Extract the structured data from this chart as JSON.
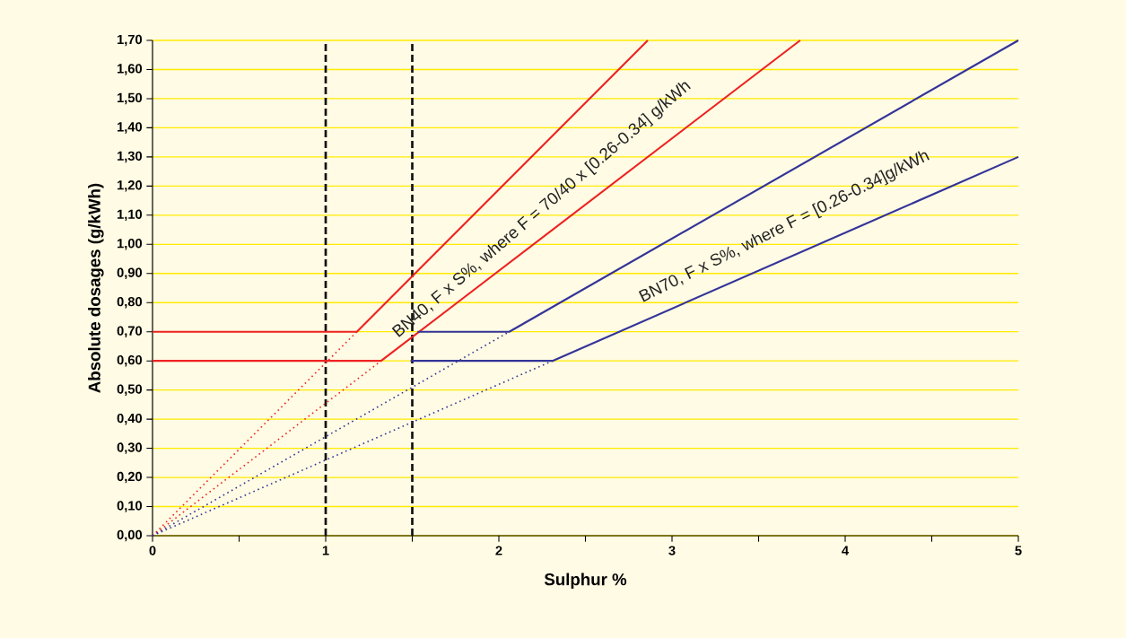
{
  "chart_data": {
    "type": "line",
    "xlabel": "Sulphur %",
    "ylabel": "Absolute dosages (g/kWh)",
    "xlim": [
      0,
      5
    ],
    "ylim": [
      0,
      1.7
    ],
    "xticks": [
      0,
      {
        "value": 0.5,
        "label": null
      },
      1,
      {
        "value": 1.5,
        "label": null
      },
      2,
      {
        "value": 2.5,
        "label": null
      },
      3,
      {
        "value": 3.5,
        "label": null
      },
      4,
      {
        "value": 4.5,
        "label": null
      },
      5
    ],
    "yticks": [
      {
        "value": 0,
        "label": "0,00"
      },
      {
        "value": 0.1,
        "label": "0,10"
      },
      {
        "value": 0.2,
        "label": "0,20"
      },
      {
        "value": 0.3,
        "label": "0,30"
      },
      {
        "value": 0.4,
        "label": "0,40"
      },
      {
        "value": 0.5,
        "label": "0,50"
      },
      {
        "value": 0.6,
        "label": "0,60"
      },
      {
        "value": 0.7,
        "label": "0,70"
      },
      {
        "value": 0.8,
        "label": "0,80"
      },
      {
        "value": 0.9,
        "label": "0,90"
      },
      {
        "value": 1.0,
        "label": "1,00"
      },
      {
        "value": 1.1,
        "label": "1,10"
      },
      {
        "value": 1.2,
        "label": "1,20"
      },
      {
        "value": 1.3,
        "label": "1,30"
      },
      {
        "value": 1.4,
        "label": "1,40"
      },
      {
        "value": 1.5,
        "label": "1,50"
      },
      {
        "value": 1.6,
        "label": "1,60"
      },
      {
        "value": 1.7,
        "label": "1,70"
      }
    ],
    "grid": "y",
    "marker": "none",
    "line_style": "solid",
    "series": [
      {
        "color": "#ee2222",
        "x": [
          0,
          1.18,
          2.86
        ],
        "values": [
          0.7,
          0.7,
          1.7
        ]
      },
      {
        "color": "#ee2222",
        "x": [
          0,
          1.18
        ],
        "values": [
          0,
          0.7
        ],
        "line_style": "dotted"
      },
      {
        "color": "#ee2222",
        "x": [
          0,
          1.32,
          3.74
        ],
        "values": [
          0.6,
          0.6,
          1.7
        ]
      },
      {
        "color": "#ee2222",
        "x": [
          0,
          1.32
        ],
        "values": [
          0,
          0.6
        ],
        "line_style": "dotted"
      },
      {
        "color": "#333399",
        "x": [
          1.53,
          2.06,
          5
        ],
        "values": [
          0.7,
          0.7,
          1.7
        ]
      },
      {
        "color": "#333399",
        "x": [
          0,
          2.06
        ],
        "values": [
          0,
          0.7
        ],
        "line_style": "dotted"
      },
      {
        "color": "#333399",
        "x": [
          1.49,
          2.31,
          5
        ],
        "values": [
          0.6,
          0.6,
          1.3
        ]
      },
      {
        "color": "#333399",
        "x": [
          0,
          2.31
        ],
        "values": [
          0,
          0.6
        ],
        "line_style": "dotted"
      }
    ],
    "ref_lines": [
      {
        "axis": "x",
        "value": 1,
        "color": "#111111",
        "line_style": "dashed"
      },
      {
        "axis": "x",
        "value": 1.5,
        "color": "#111111",
        "line_style": "dashed"
      }
    ],
    "annotations": [
      "BN40, F x S%, where F = 70/40 x [0.26-0.34] g/kWh",
      "BN70, F x S%, where F = [0.26-0.34]g/kWh"
    ]
  }
}
